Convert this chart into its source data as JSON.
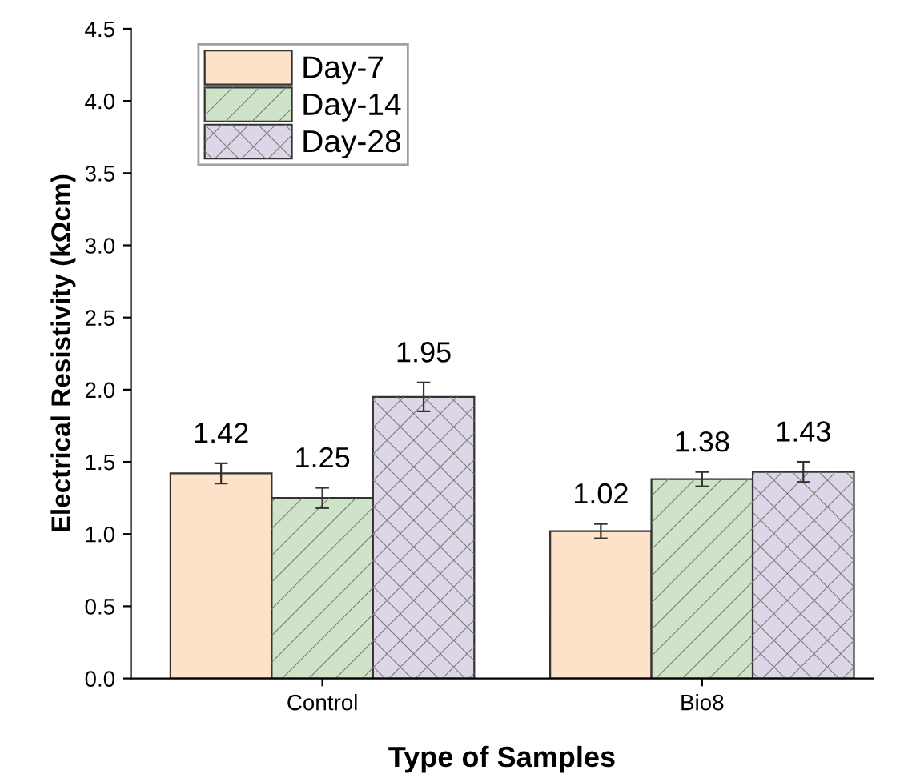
{
  "chart_data": {
    "type": "bar",
    "xlabel": "Type of Samples",
    "ylabel": "Electrical Resistivity (kΩcm)",
    "categories": [
      "Control",
      "Bio8"
    ],
    "series": [
      {
        "name": "Day-7",
        "color": "#fde1c8",
        "values": [
          1.42,
          1.02
        ],
        "errors": [
          0.07,
          0.05
        ]
      },
      {
        "name": "Day-14",
        "color": "#cfe3c8",
        "values": [
          1.25,
          1.38
        ],
        "errors": [
          0.07,
          0.05
        ]
      },
      {
        "name": "Day-28",
        "color": "#ddd6e6",
        "values": [
          1.95,
          1.43
        ],
        "errors": [
          0.1,
          0.07
        ]
      }
    ],
    "ylim": [
      0,
      4.5
    ],
    "yticks": [
      {
        "value": 0,
        "label": "0.0"
      },
      {
        "value": 0.5,
        "label": "0.5"
      },
      {
        "value": 1,
        "label": "1.0"
      },
      {
        "value": 1.5,
        "label": "1.5"
      },
      {
        "value": 2,
        "label": "2.0"
      },
      {
        "value": 2.5,
        "label": "2.5"
      },
      {
        "value": 3,
        "label": "3.0"
      },
      {
        "value": 3.5,
        "label": "3.5"
      },
      {
        "value": 4,
        "label": "4.0"
      },
      {
        "value": 4.5,
        "label": "4.5"
      }
    ],
    "data_labels": true,
    "grid": false,
    "legend": "top left"
  }
}
